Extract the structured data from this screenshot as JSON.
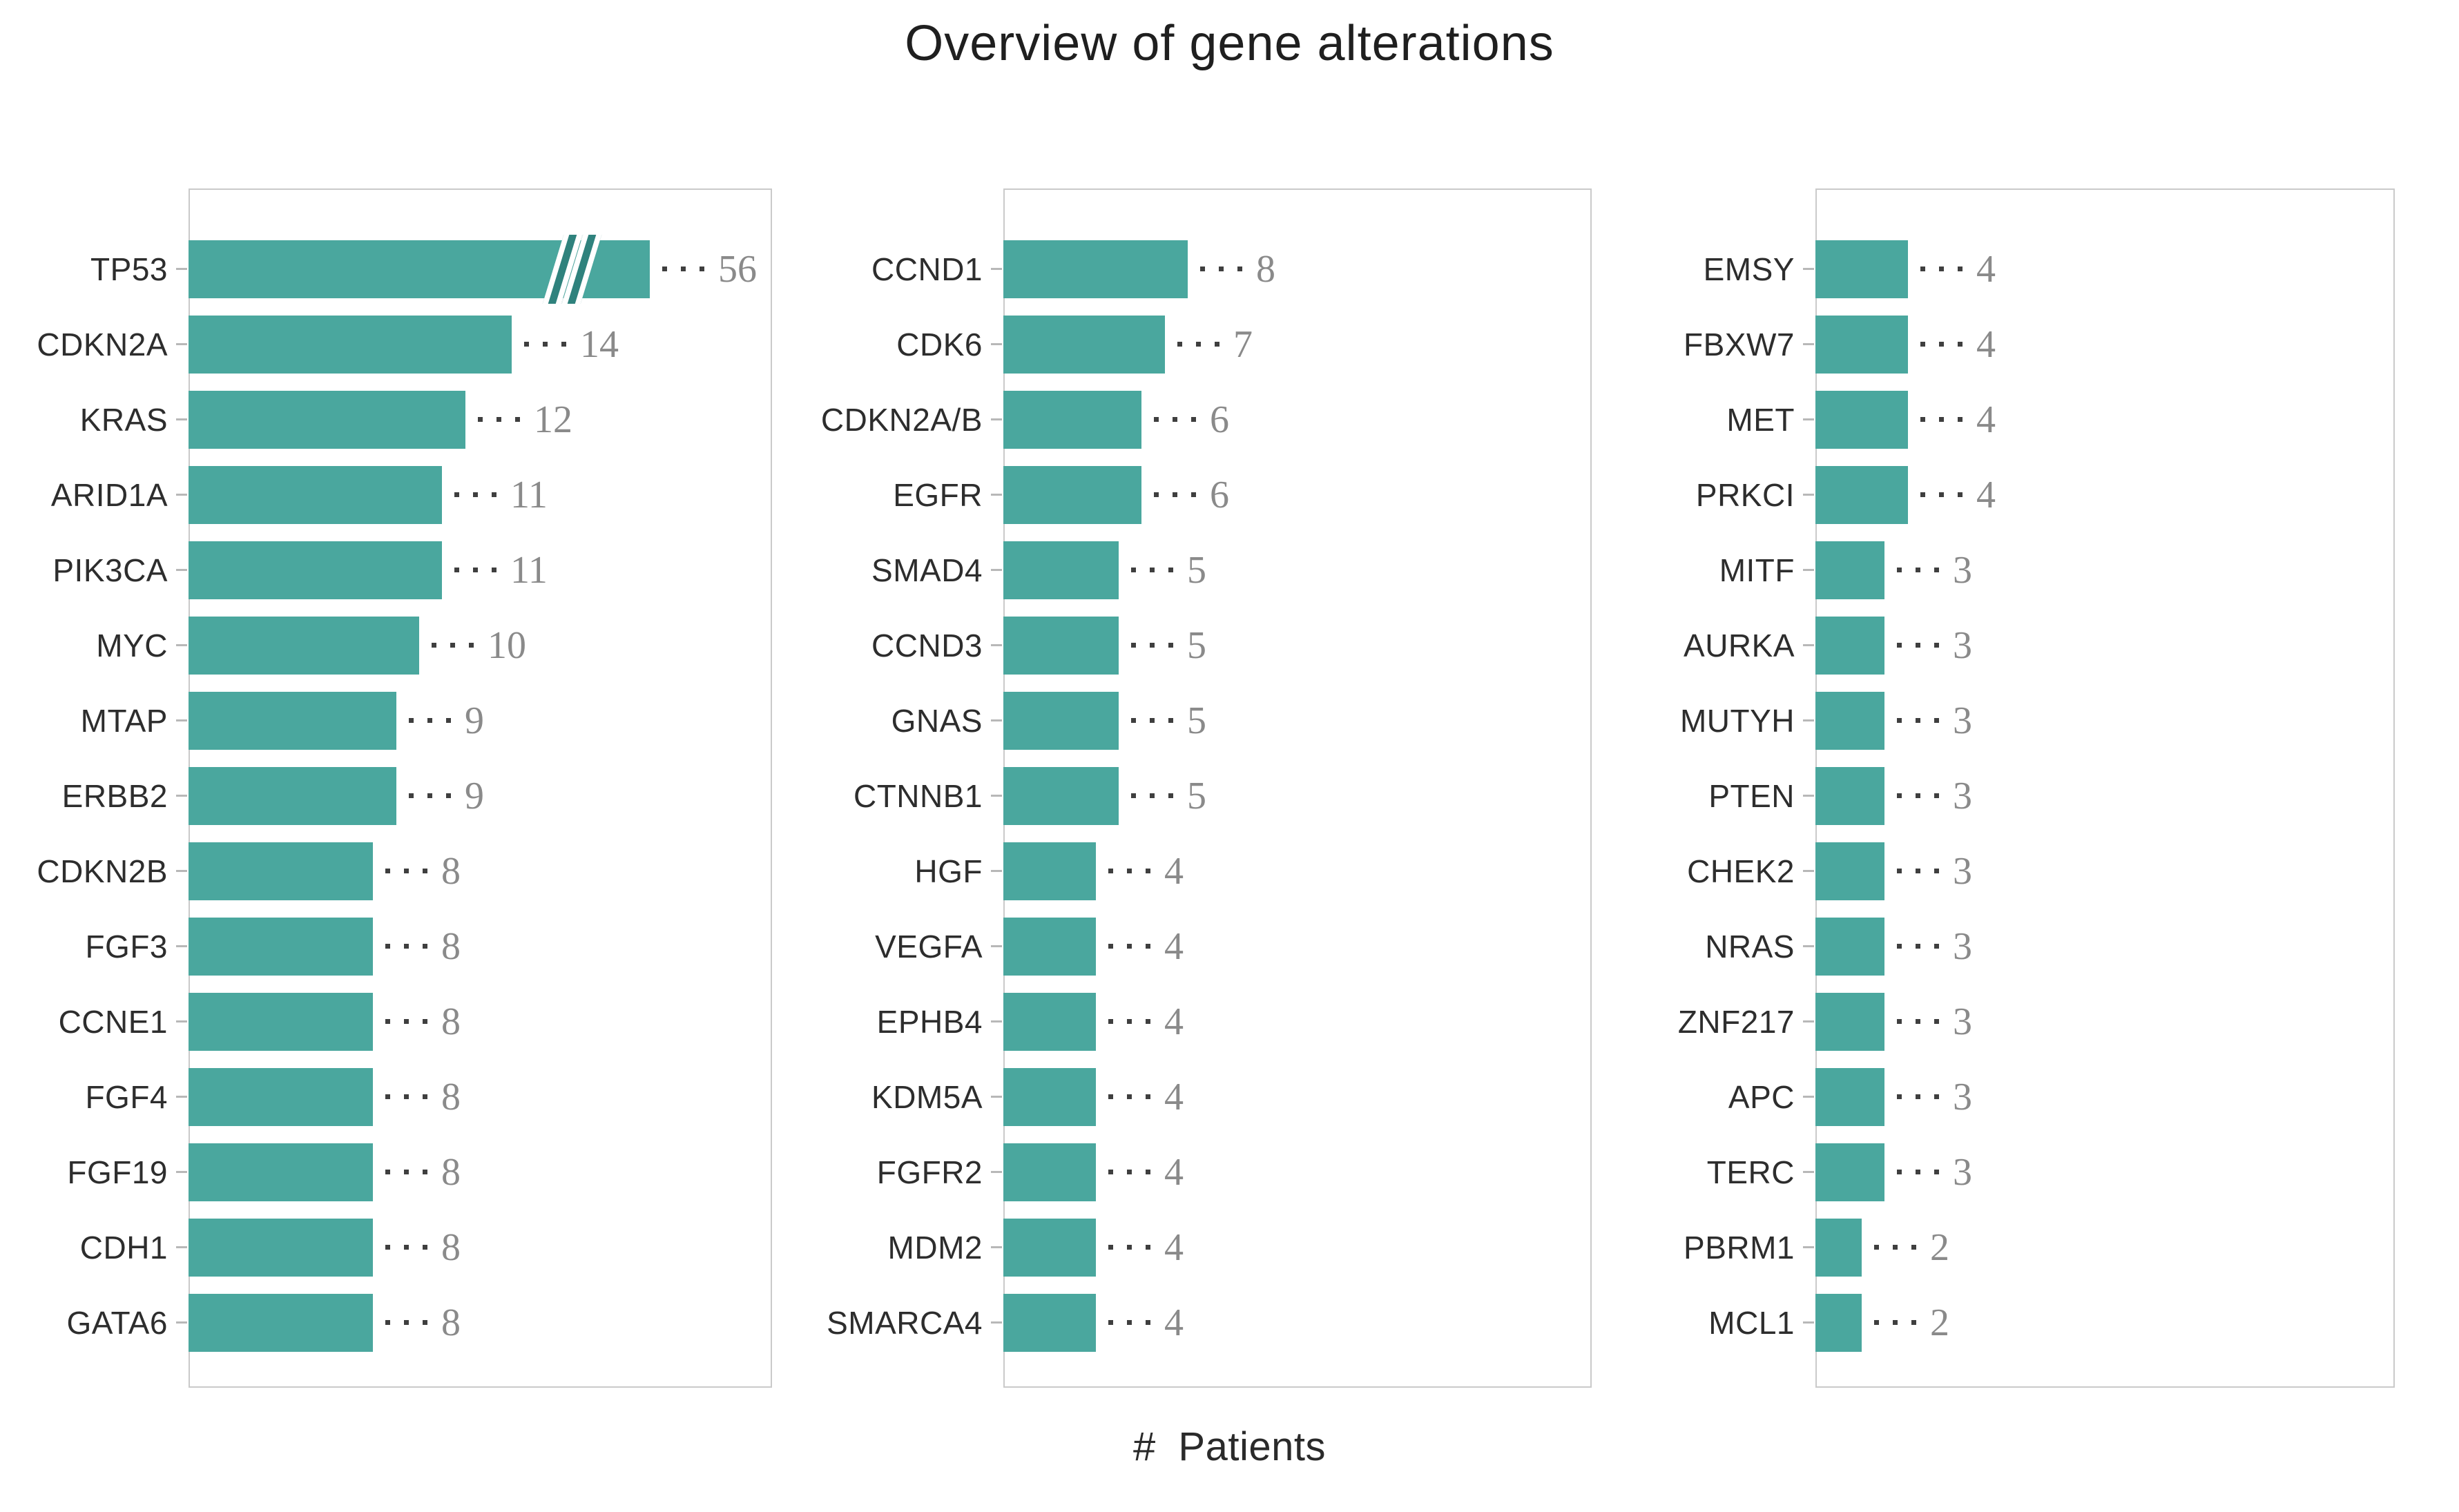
{
  "title": "Overview of gene alterations",
  "x_axis_label": "# Patients",
  "value_annotation_leader": "···",
  "colors": {
    "bar": "#4AA79E",
    "axis_break_stroke": "#2F827D",
    "value_number": "#8A8A8A",
    "leader_dots": "#3F3F3F",
    "gene_label": "#2D2D2D",
    "panel_frame": "#CACACA",
    "tick": "#B8B8B8",
    "title_text": "#1F1F1F"
  },
  "chart_data": {
    "type": "bar",
    "orientation": "horizontal",
    "title": "Overview of gene alterations",
    "xlabel": "# Patients",
    "ylabel": "",
    "grid": false,
    "legend": false,
    "value_label_style": "dotted leader then count at end of each bar",
    "shared_x_scale": true,
    "axis_break": {
      "gene": "TP53",
      "value": 56,
      "drawn_as": 20
    },
    "panels": [
      {
        "bars": [
          {
            "gene": "TP53",
            "value": 56,
            "axis_break": true
          },
          {
            "gene": "CDKN2A",
            "value": 14
          },
          {
            "gene": "KRAS",
            "value": 12
          },
          {
            "gene": "ARID1A",
            "value": 11
          },
          {
            "gene": "PIK3CA",
            "value": 11
          },
          {
            "gene": "MYC",
            "value": 10
          },
          {
            "gene": "MTAP",
            "value": 9
          },
          {
            "gene": "ERBB2",
            "value": 9
          },
          {
            "gene": "CDKN2B",
            "value": 8
          },
          {
            "gene": "FGF3",
            "value": 8
          },
          {
            "gene": "CCNE1",
            "value": 8
          },
          {
            "gene": "FGF4",
            "value": 8
          },
          {
            "gene": "FGF19",
            "value": 8
          },
          {
            "gene": "CDH1",
            "value": 8
          },
          {
            "gene": "GATA6",
            "value": 8
          }
        ]
      },
      {
        "bars": [
          {
            "gene": "CCND1",
            "value": 8
          },
          {
            "gene": "CDK6",
            "value": 7
          },
          {
            "gene": "CDKN2A/B",
            "value": 6
          },
          {
            "gene": "EGFR",
            "value": 6
          },
          {
            "gene": "SMAD4",
            "value": 5
          },
          {
            "gene": "CCND3",
            "value": 5
          },
          {
            "gene": "GNAS",
            "value": 5
          },
          {
            "gene": "CTNNB1",
            "value": 5
          },
          {
            "gene": "HGF",
            "value": 4
          },
          {
            "gene": "VEGFA",
            "value": 4
          },
          {
            "gene": "EPHB4",
            "value": 4
          },
          {
            "gene": "KDM5A",
            "value": 4
          },
          {
            "gene": "FGFR2",
            "value": 4
          },
          {
            "gene": "MDM2",
            "value": 4
          },
          {
            "gene": "SMARCA4",
            "value": 4
          }
        ]
      },
      {
        "bars": [
          {
            "gene": "EMSY",
            "value": 4
          },
          {
            "gene": "FBXW7",
            "value": 4
          },
          {
            "gene": "MET",
            "value": 4
          },
          {
            "gene": "PRKCI",
            "value": 4
          },
          {
            "gene": "MITF",
            "value": 3
          },
          {
            "gene": "AURKA",
            "value": 3
          },
          {
            "gene": "MUTYH",
            "value": 3
          },
          {
            "gene": "PTEN",
            "value": 3
          },
          {
            "gene": "CHEK2",
            "value": 3
          },
          {
            "gene": "NRAS",
            "value": 3
          },
          {
            "gene": "ZNF217",
            "value": 3
          },
          {
            "gene": "APC",
            "value": 3
          },
          {
            "gene": "TERC",
            "value": 3
          },
          {
            "gene": "PBRM1",
            "value": 2
          },
          {
            "gene": "MCL1",
            "value": 2
          }
        ]
      }
    ]
  }
}
